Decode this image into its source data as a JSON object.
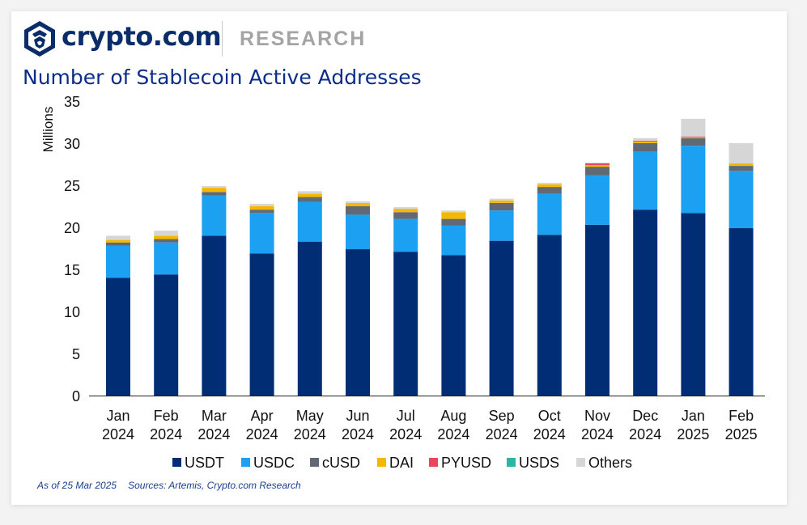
{
  "header": {
    "brand": "crypto.com",
    "section": "RESEARCH",
    "title": "Number of Stablecoin Active Addresses"
  },
  "footer": {
    "as_of": "As of 25 Mar 2025",
    "sources": "Sources: Artemis, Crypto.com Research"
  },
  "colors": {
    "brand": "#0a2d69",
    "title": "#0a2d8a"
  },
  "chart_data": {
    "type": "bar",
    "stacked": true,
    "ylabel": "Millions",
    "ylim": [
      0,
      35
    ],
    "yticks": [
      0,
      5,
      10,
      15,
      20,
      25,
      30,
      35
    ],
    "grid": false,
    "legend": "bottom",
    "categories": [
      [
        "Jan",
        "2024"
      ],
      [
        "Feb",
        "2024"
      ],
      [
        "Mar",
        "2024"
      ],
      [
        "Apr",
        "2024"
      ],
      [
        "May",
        "2024"
      ],
      [
        "Jun",
        "2024"
      ],
      [
        "Jul",
        "2024"
      ],
      [
        "Aug",
        "2024"
      ],
      [
        "Sep",
        "2024"
      ],
      [
        "Oct",
        "2024"
      ],
      [
        "Nov",
        "2024"
      ],
      [
        "Dec",
        "2024"
      ],
      [
        "Jan",
        "2025"
      ],
      [
        "Feb",
        "2025"
      ]
    ],
    "series": [
      {
        "name": "USDT",
        "color": "#002d74",
        "values": [
          14.0,
          14.4,
          19.0,
          16.9,
          18.3,
          17.4,
          17.1,
          16.7,
          18.4,
          19.1,
          20.3,
          22.1,
          21.7,
          19.9
        ]
      },
      {
        "name": "USDC",
        "color": "#1ba0f2",
        "values": [
          3.8,
          3.8,
          4.8,
          4.8,
          4.7,
          4.1,
          3.9,
          3.5,
          3.6,
          4.9,
          5.9,
          6.9,
          8.0,
          6.8
        ]
      },
      {
        "name": "cUSD",
        "color": "#616a74",
        "values": [
          0.4,
          0.4,
          0.4,
          0.4,
          0.6,
          1.0,
          0.8,
          0.8,
          0.9,
          0.8,
          1.0,
          1.0,
          0.9,
          0.6
        ]
      },
      {
        "name": "DAI",
        "color": "#f5b700",
        "values": [
          0.3,
          0.4,
          0.5,
          0.4,
          0.4,
          0.4,
          0.4,
          0.8,
          0.3,
          0.3,
          0.2,
          0.2,
          0.1,
          0.3
        ]
      },
      {
        "name": "PYUSD",
        "color": "#e9475e",
        "values": [
          0.0,
          0.0,
          0.0,
          0.0,
          0.0,
          0.0,
          0.0,
          0.0,
          0.0,
          0.0,
          0.2,
          0.1,
          0.1,
          0.0
        ]
      },
      {
        "name": "USDS",
        "color": "#2bb6a3",
        "values": [
          0.0,
          0.0,
          0.0,
          0.0,
          0.0,
          0.0,
          0.0,
          0.0,
          0.0,
          0.0,
          0.0,
          0.0,
          0.0,
          0.0
        ]
      },
      {
        "name": "Others",
        "color": "#d6d6d6",
        "values": [
          0.5,
          0.6,
          0.2,
          0.3,
          0.3,
          0.2,
          0.2,
          0.2,
          0.2,
          0.2,
          0.1,
          0.3,
          2.1,
          2.4
        ]
      }
    ]
  }
}
